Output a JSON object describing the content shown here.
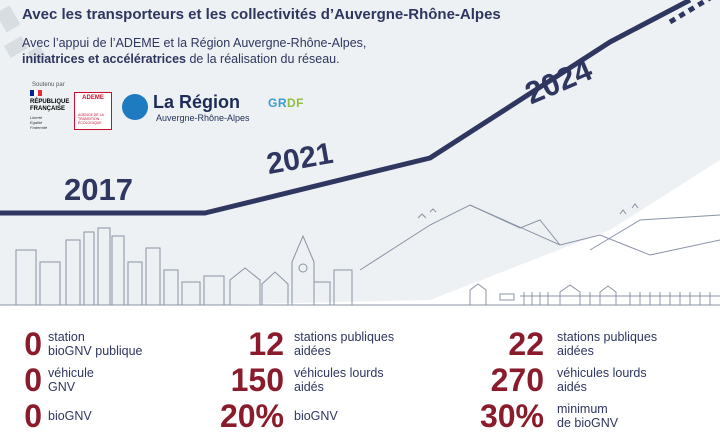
{
  "header": {
    "title": "Avec les transporteurs et les collectivités d’Auvergne-Rhône-Alpes",
    "subtitle_line1": "Avec l’appui de l’ADEME et la Région Auvergne-Rhône-Alpes,",
    "subtitle_line2_bold": "initiatrices et accélératrices",
    "subtitle_line2_rest": " de la réalisation du réseau."
  },
  "logos": {
    "soutenu_par": "Soutenu par",
    "republique": "RÉPUBLIQUE\nFRANÇAISE",
    "republique_motto": "Liberté\nÉgalité\nFraternité",
    "ademe": "ADEME",
    "ademe_sub": "AGENCE DE LA TRANSITION ÉCOLOGIQUE",
    "region_name": "La Région",
    "region_sub": "Auvergne-Rhône-Alpes",
    "grdf_g": "GR",
    "grdf_df": "DF"
  },
  "timeline": {
    "years": [
      "2017",
      "2021",
      "2024"
    ]
  },
  "colors": {
    "navy": "#2f3660",
    "burgundy": "#8a1b2b",
    "background_band": "#e9eef0",
    "drawing_gray": "#8a93a6",
    "flag_blue": "#002395",
    "flag_red": "#ed2939"
  },
  "stats": {
    "col2017": [
      {
        "number": "0",
        "label": "station\nbioGNV publique"
      },
      {
        "number": "0",
        "label": "véhicule\nGNV"
      },
      {
        "number": "0",
        "label": "bioGNV"
      }
    ],
    "col2021": [
      {
        "number": "12",
        "label": "stations publiques\naidées"
      },
      {
        "number": "150",
        "label": "véhicules lourds\naidés"
      },
      {
        "number": "20%",
        "label": "bioGNV"
      }
    ],
    "col2024": [
      {
        "number": "22",
        "label": "stations publiques\naidées"
      },
      {
        "number": "270",
        "label": "véhicules lourds\naidés"
      },
      {
        "number": "30%",
        "label": "minimum\nde bioGNV"
      }
    ]
  }
}
